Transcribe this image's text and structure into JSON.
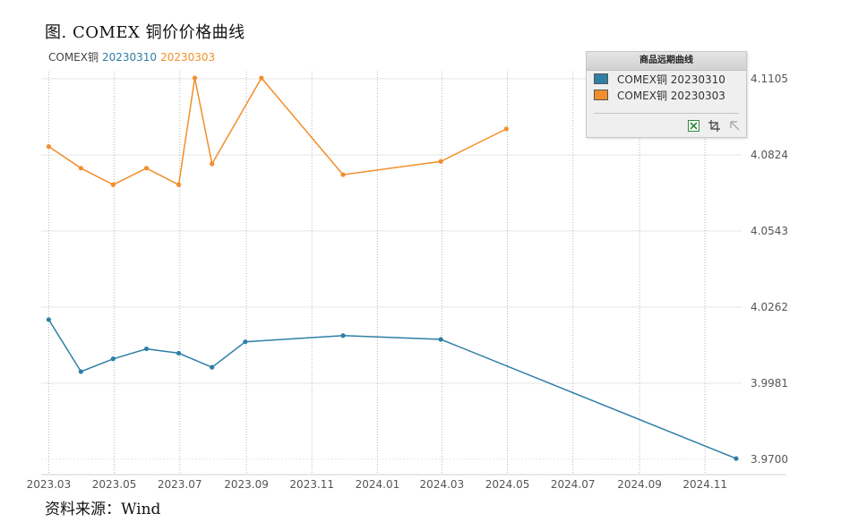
{
  "figure": {
    "title": "图. COMEX 铜价价格曲线",
    "source": "资料来源：Wind"
  },
  "header": {
    "prefix": "COMEX铜",
    "series1_code": "20230310",
    "series2_code": "20230303"
  },
  "legend": {
    "title": "商品远期曲线",
    "items": [
      {
        "label": "COMEX铜 20230310",
        "color": "#2e7ea6"
      },
      {
        "label": "COMEX铜 20230303",
        "color": "#f28e2b"
      }
    ],
    "tools": [
      "excel-export-icon",
      "crop-icon",
      "expand-icon"
    ]
  },
  "colors": {
    "series1": "#2e7ea6",
    "series2": "#f28e2b",
    "header_prefix": "#444444"
  },
  "chart_data": {
    "type": "line",
    "x_ticks": [
      "2023.03",
      "2023.05",
      "2023.07",
      "2023.09",
      "2023.11",
      "2024.01",
      "2024.03",
      "2024.05",
      "2024.07",
      "2024.09",
      "2024.11"
    ],
    "y_ticks": [
      "4.1105",
      "4.0824",
      "4.0543",
      "4.0262",
      "3.9981",
      "3.9700"
    ],
    "ylim": [
      3.97,
      4.1105
    ],
    "xlim": [
      "2023-02-22",
      "2024-12-05"
    ],
    "grid": true,
    "series": [
      {
        "name": "COMEX铜 20230310",
        "points": [
          {
            "x": "2023-03-01",
            "y": 4.0216
          },
          {
            "x": "2023-03-31",
            "y": 4.0024
          },
          {
            "x": "2023-04-30",
            "y": 4.0071
          },
          {
            "x": "2023-05-31",
            "y": 4.0108
          },
          {
            "x": "2023-06-30",
            "y": 4.0092
          },
          {
            "x": "2023-07-31",
            "y": 4.004
          },
          {
            "x": "2023-08-31",
            "y": 4.0134
          },
          {
            "x": "2023-11-30",
            "y": 4.0157
          },
          {
            "x": "2024-02-29",
            "y": 4.0143
          },
          {
            "x": "2024-11-30",
            "y": 3.9703
          }
        ]
      },
      {
        "name": "COMEX铜 20230303",
        "points": [
          {
            "x": "2023-03-01",
            "y": 4.0855
          },
          {
            "x": "2023-03-31",
            "y": 4.0775
          },
          {
            "x": "2023-04-30",
            "y": 4.0714
          },
          {
            "x": "2023-05-31",
            "y": 4.0775
          },
          {
            "x": "2023-06-30",
            "y": 4.0714
          },
          {
            "x": "2023-07-15",
            "y": 4.1108
          },
          {
            "x": "2023-07-31",
            "y": 4.0791
          },
          {
            "x": "2023-09-15",
            "y": 4.1108
          },
          {
            "x": "2023-11-30",
            "y": 4.0751
          },
          {
            "x": "2024-02-29",
            "y": 4.08
          },
          {
            "x": "2024-04-30",
            "y": 4.092
          }
        ]
      }
    ]
  }
}
